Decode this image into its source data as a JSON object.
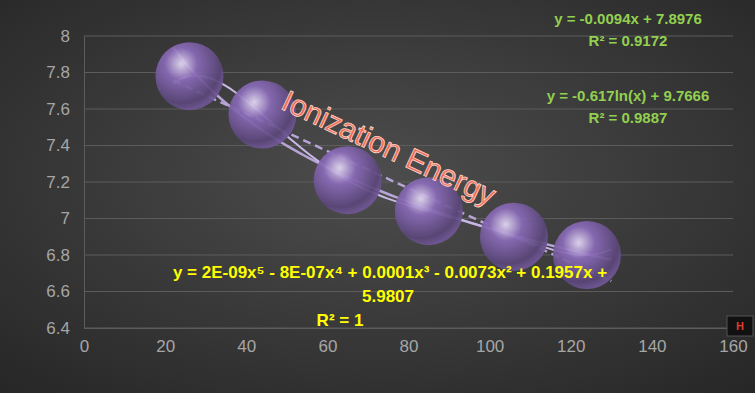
{
  "chart_data": {
    "type": "scatter",
    "title": "Ionization Energy",
    "x": [
      26,
      44,
      65,
      85,
      106,
      124
    ],
    "series": [
      {
        "values": [
          7.78,
          7.57,
          7.21,
          7.04,
          6.9,
          6.8
        ],
        "color": "#8a6bb8",
        "marker": "circle"
      }
    ],
    "xlim": [
      0,
      160
    ],
    "xticks": [
      0,
      20,
      40,
      60,
      80,
      100,
      120,
      140,
      160
    ],
    "ylim": [
      6.4,
      8
    ],
    "yticks": [
      6.4,
      6.6,
      6.8,
      7,
      7.2,
      7.4,
      7.6,
      7.8,
      8
    ],
    "grid": true,
    "annotations": [
      "y = -0.0094x + 7.8976",
      "R² = 0.9172",
      "y = -0.617ln(x) + 9.7666",
      "R² = 0.9887",
      "y = 2E-09x⁵ - 8E-07x⁴ + 0.0001x³ - 0.0073x² + 0.1957x +",
      "5.9807",
      "R² = 1",
      "H"
    ]
  }
}
